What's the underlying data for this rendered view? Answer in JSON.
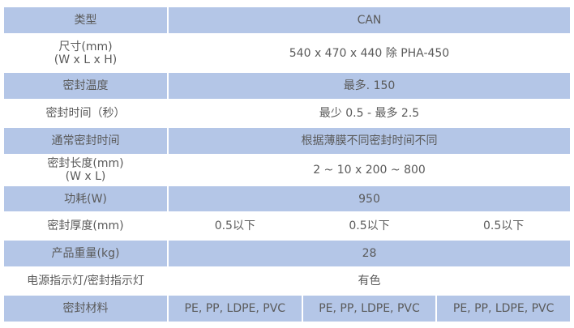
{
  "colors": {
    "row_fill": "#b4c6e7",
    "text": "#5a5a5a"
  },
  "rows": [
    {
      "label": "类型",
      "values": [
        "CAN"
      ],
      "shaded": true
    },
    {
      "label": "尺寸(mm)",
      "label2": "(W x L x H)",
      "values": [
        "540 x 470 x 440  除 PHA-450"
      ],
      "shaded": false
    },
    {
      "label": "密封温度",
      "values": [
        "最多. 150"
      ],
      "shaded": true
    },
    {
      "label": "密封时间（秒）",
      "values": [
        "最少 0.5 - 最多 2.5"
      ],
      "shaded": false
    },
    {
      "label": "通常密封时间",
      "values": [
        "根据薄膜不同密封时间不同"
      ],
      "shaded": true
    },
    {
      "label": "密封长度(mm)",
      "label2": "(W x L)",
      "values": [
        "2 ~ 10 x 200 ~ 800"
      ],
      "shaded": false
    },
    {
      "label": "功耗(W)",
      "values": [
        "950"
      ],
      "shaded": true
    },
    {
      "label": "密封厚度(mm)",
      "values": [
        "0.5以下",
        "0.5以下",
        "0.5以下"
      ],
      "shaded": false
    },
    {
      "label": "产品重量(kg)",
      "values": [
        "28"
      ],
      "shaded": true
    },
    {
      "label": "电源指示灯/密封指示灯",
      "values": [
        "有色"
      ],
      "shaded": false
    },
    {
      "label": "密封材料",
      "values": [
        "PE, PP, LDPE, PVC",
        "PE, PP, LDPE, PVC",
        "PE, PP, LDPE, PVC"
      ],
      "shaded": true
    }
  ]
}
